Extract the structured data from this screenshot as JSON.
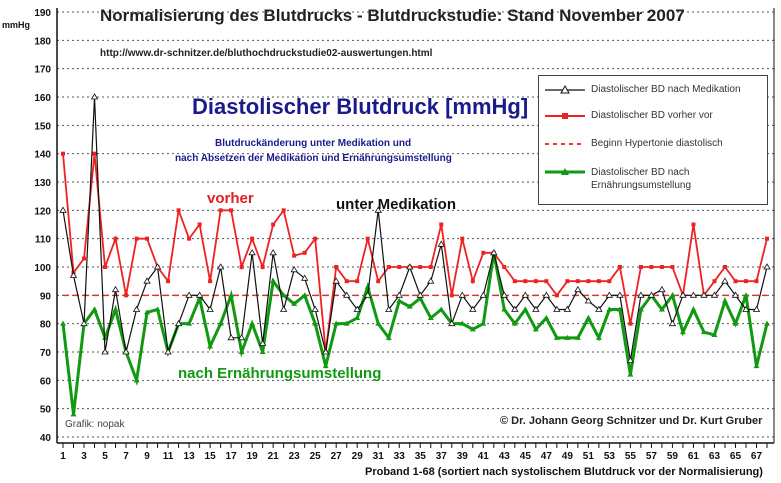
{
  "chart_data": {
    "type": "line",
    "title": "Normalisierung des Blutdrucks - Blutdruckstudie: Stand November 2007",
    "url_text": "http://www.dr-schnitzer.de/bluthochdruckstudie02-auswertungen.html",
    "subtitle": "Diastolischer Blutdruck [mmHg]",
    "subtitle2": "Blutdruckänderung unter Medikation und",
    "subtitle3": "nach Absetzen der Medikation und Ernährungsumstellung",
    "ylabel": "mmHg",
    "xlabel": "Proband 1-68  (sortiert nach systolischem Blutdruck vor der Normalisierung)",
    "ylim": [
      40,
      190
    ],
    "yticks": [
      40,
      50,
      60,
      70,
      80,
      90,
      100,
      110,
      120,
      130,
      140,
      150,
      160,
      170,
      180,
      190
    ],
    "xticks": [
      1,
      3,
      5,
      7,
      9,
      11,
      13,
      15,
      17,
      19,
      21,
      23,
      25,
      27,
      29,
      31,
      33,
      35,
      37,
      39,
      41,
      43,
      45,
      47,
      49,
      51,
      53,
      55,
      57,
      59,
      61,
      63,
      65,
      67
    ],
    "grid": "horizontal dotted",
    "legend_position": "top-right",
    "annotations": {
      "vorher": "vorher",
      "medikation": "unter   Medikation",
      "nach": "nach Ernährungsumstellung",
      "grafik": "Grafik: nopak",
      "copyright": "© Dr. Johann Georg Schnitzer und Dr. Kurt Gruber"
    },
    "reference_line": {
      "name": "Beginn Hypertonie diastolisch",
      "value": 90,
      "color": "#e03030"
    },
    "series": [
      {
        "name": "Diastolischer BD nach Medikation",
        "color": "#111111",
        "values": [
          120,
          97,
          80,
          160,
          70,
          92,
          70,
          85,
          95,
          100,
          70,
          80,
          90,
          90,
          85,
          100,
          75,
          75,
          105,
          73,
          105,
          85,
          99,
          96,
          85,
          70,
          95,
          90,
          85,
          90,
          120,
          85,
          90,
          100,
          90,
          95,
          108,
          80,
          90,
          85,
          90,
          105,
          90,
          85,
          90,
          85,
          90,
          85,
          85,
          92,
          88,
          85,
          90,
          90,
          67,
          90,
          90,
          92,
          80,
          90,
          90,
          90,
          90,
          95,
          90,
          85,
          85,
          100
        ]
      },
      {
        "name": "Diastolischer BD vorher vor",
        "color": "#ee2222",
        "values": [
          140,
          98,
          103,
          140,
          100,
          110,
          90,
          110,
          110,
          100,
          95,
          120,
          110,
          115,
          95,
          120,
          120,
          100,
          110,
          100,
          115,
          120,
          104,
          105,
          110,
          70,
          100,
          95,
          95,
          110,
          95,
          100,
          100,
          100,
          100,
          100,
          115,
          90,
          110,
          95,
          105,
          105,
          100,
          95,
          95,
          95,
          95,
          90,
          95,
          95,
          95,
          95,
          95,
          100,
          80,
          100,
          100,
          100,
          100,
          90,
          115,
          90,
          95,
          100,
          95,
          95,
          95,
          110
        ]
      },
      {
        "name": "Diastolischer BD nach Ernährungsumstellung",
        "color": "#119911",
        "values": [
          80,
          48,
          80,
          85,
          75,
          85,
          70,
          60,
          84,
          85,
          70,
          80,
          80,
          89,
          72,
          80,
          90,
          70,
          80,
          70,
          95,
          90,
          87,
          90,
          80,
          65,
          80,
          80,
          82,
          93,
          80,
          75,
          88,
          86,
          89,
          82,
          85,
          80,
          80,
          78,
          80,
          105,
          85,
          80,
          85,
          78,
          82,
          75,
          75,
          75,
          82,
          75,
          85,
          85,
          62,
          85,
          90,
          85,
          90,
          77,
          85,
          77,
          76,
          88,
          80,
          90,
          65,
          80
        ]
      }
    ]
  }
}
